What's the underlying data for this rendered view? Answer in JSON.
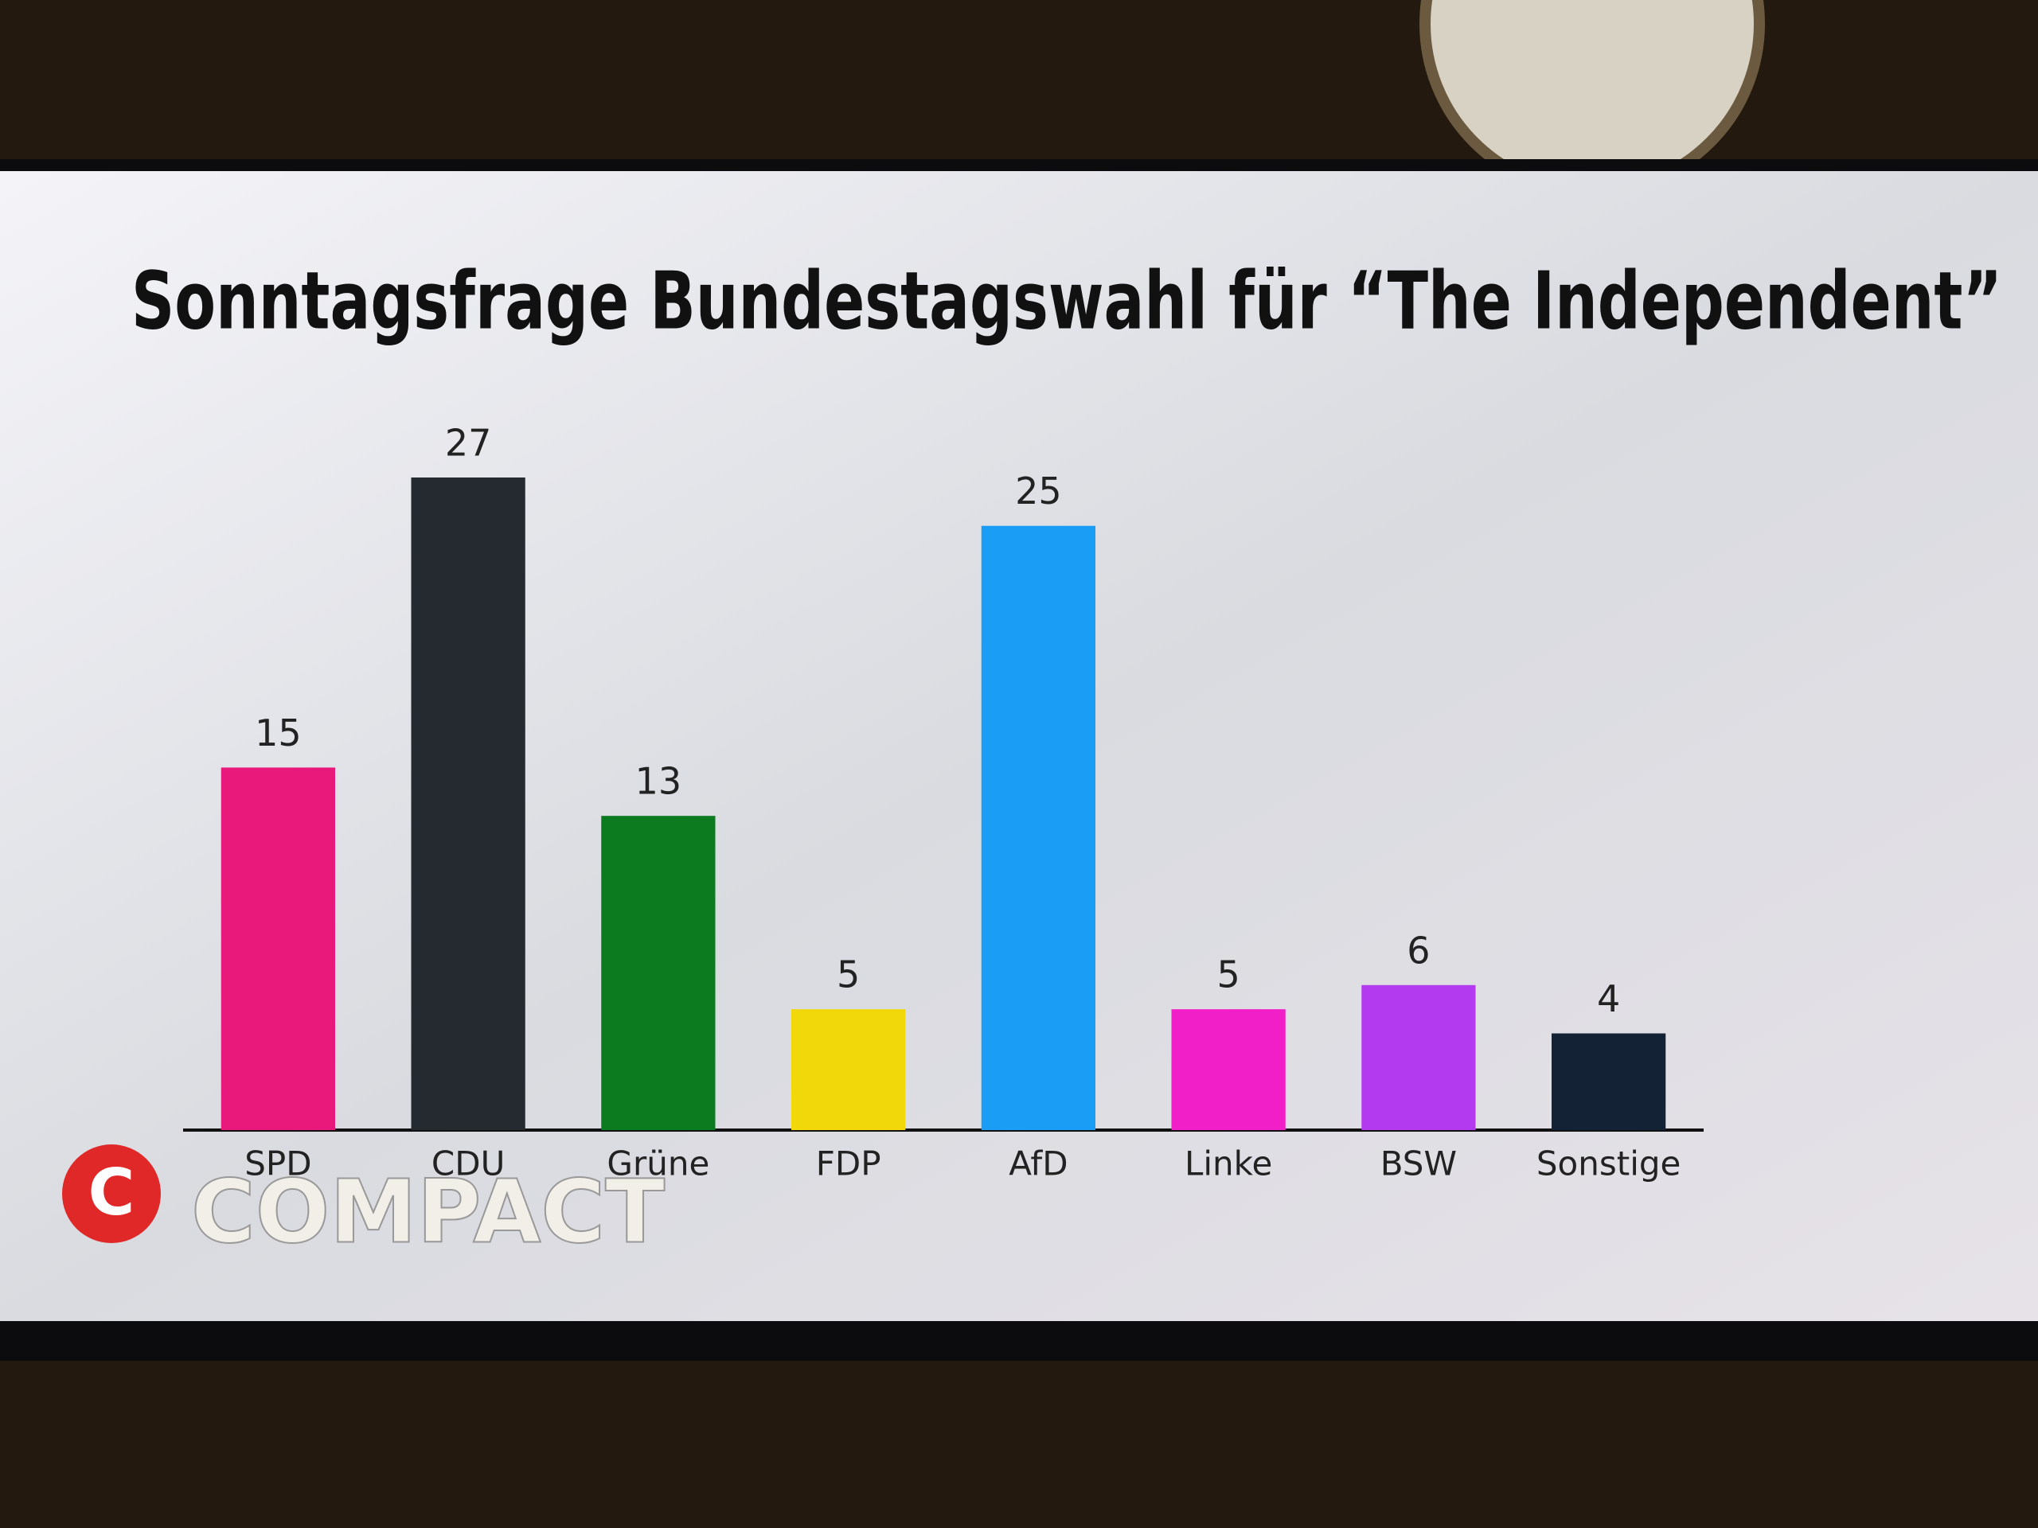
{
  "chart_data": {
    "type": "bar",
    "title": "Sonntagsfrage Bundestagswahl für “The Independent”",
    "categories": [
      "SPD",
      "CDU",
      "Grüne",
      "FDP",
      "AfD",
      "Linke",
      "BSW",
      "Sonstige"
    ],
    "values": [
      15,
      27,
      13,
      5,
      25,
      5,
      6,
      4
    ],
    "colors": [
      "#e8197a",
      "#252a30",
      "#0c7a1e",
      "#f0d80a",
      "#1a9ef5",
      "#f01fc8",
      "#b43af0",
      "#142236"
    ]
  },
  "logo": {
    "mark": "C",
    "text": "COMPACT"
  }
}
